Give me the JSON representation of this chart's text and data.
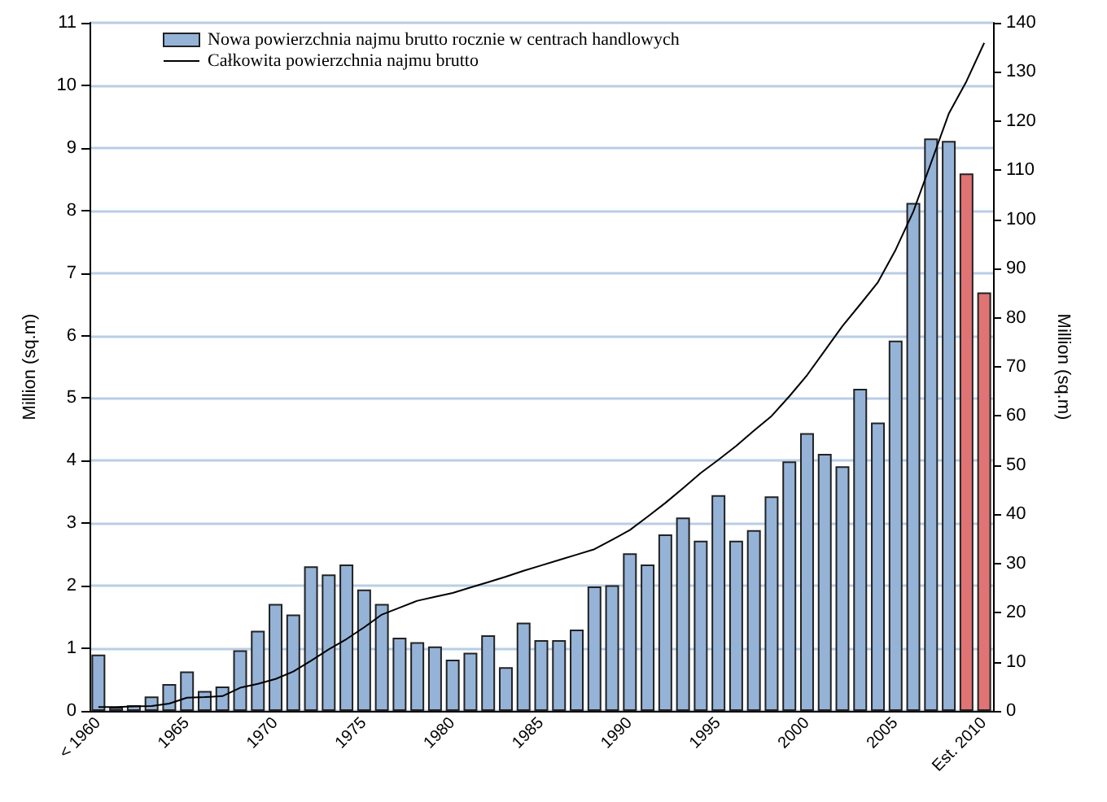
{
  "chart_data": {
    "type": "bar",
    "categories": [
      "< 1960",
      null,
      null,
      null,
      null,
      "1965",
      null,
      null,
      null,
      null,
      "1970",
      null,
      null,
      null,
      null,
      "1975",
      null,
      null,
      null,
      null,
      "1980",
      null,
      null,
      null,
      null,
      "1985",
      null,
      null,
      null,
      null,
      "1990",
      null,
      null,
      null,
      null,
      "1995",
      null,
      null,
      null,
      null,
      "2000",
      null,
      null,
      null,
      null,
      "2005",
      null,
      null,
      null,
      null,
      "Est. 2010"
    ],
    "series": [
      {
        "name": "Nowa powierzchnia najmu brutto rocznie w centrach handlowych",
        "color": "#95b3d7",
        "colors": [
          "#95b3d7",
          "#95b3d7",
          "#95b3d7",
          "#95b3d7",
          "#95b3d7",
          "#95b3d7",
          "#95b3d7",
          "#95b3d7",
          "#95b3d7",
          "#95b3d7",
          "#95b3d7",
          "#95b3d7",
          "#95b3d7",
          "#95b3d7",
          "#95b3d7",
          "#95b3d7",
          "#95b3d7",
          "#95b3d7",
          "#95b3d7",
          "#95b3d7",
          "#95b3d7",
          "#95b3d7",
          "#95b3d7",
          "#95b3d7",
          "#95b3d7",
          "#95b3d7",
          "#95b3d7",
          "#95b3d7",
          "#95b3d7",
          "#95b3d7",
          "#95b3d7",
          "#95b3d7",
          "#95b3d7",
          "#95b3d7",
          "#95b3d7",
          "#95b3d7",
          "#95b3d7",
          "#95b3d7",
          "#95b3d7",
          "#95b3d7",
          "#95b3d7",
          "#95b3d7",
          "#95b3d7",
          "#95b3d7",
          "#95b3d7",
          "#95b3d7",
          "#95b3d7",
          "#95b3d7",
          "#95b3d7",
          "#e07475",
          "#e07475"
        ],
        "values": [
          0.9,
          0.06,
          0.09,
          0.23,
          0.43,
          0.63,
          0.32,
          0.39,
          0.97,
          1.28,
          1.71,
          1.54,
          2.31,
          2.18,
          2.34,
          1.94,
          1.71,
          1.17,
          1.1,
          1.03,
          0.82,
          0.93,
          1.21,
          0.7,
          1.41,
          1.13,
          1.13,
          1.3,
          1.99,
          2.01,
          2.52,
          2.34,
          2.82,
          3.09,
          2.72,
          3.45,
          2.72,
          2.89,
          3.43,
          3.99,
          4.44,
          4.11,
          3.91,
          5.15,
          4.61,
          5.92,
          8.12,
          9.15,
          9.11,
          8.59,
          6.69
        ]
      },
      {
        "name": "Całkowita powierzchnia najmu brutto",
        "type": "line",
        "axis": "y2",
        "color": "#000000",
        "marker": "none",
        "line_style": "solid",
        "values": [
          0.8,
          0.8,
          0.9,
          1.0,
          1.5,
          2.7,
          2.8,
          3.0,
          4.7,
          5.5,
          6.5,
          8.0,
          10.2,
          12.5,
          14.6,
          17.0,
          19.6,
          21.0,
          22.4,
          23.2,
          24.0,
          25.1,
          26.2,
          27.3,
          28.5,
          29.6,
          30.7,
          31.8,
          32.9,
          34.8,
          36.8,
          39.5,
          42.3,
          45.3,
          48.4,
          51.1,
          53.9,
          57.0,
          60.0,
          64.0,
          68.3,
          73.3,
          78.3,
          82.7,
          87.2,
          93.8,
          101.6,
          111.5,
          121.5,
          128.1,
          135.9
        ]
      }
    ],
    "ylabel": "Million (sq.m)",
    "y2label": "Million (sq.m)",
    "ylim": [
      0,
      11
    ],
    "yticks": [
      0,
      1,
      2,
      3,
      4,
      5,
      6,
      7,
      8,
      9,
      10,
      11
    ],
    "y2lim": [
      0,
      140
    ],
    "y2ticks": [
      0,
      10,
      20,
      30,
      40,
      50,
      60,
      70,
      80,
      90,
      100,
      110,
      120,
      130,
      140
    ],
    "grid": "y",
    "legend": "top left"
  }
}
